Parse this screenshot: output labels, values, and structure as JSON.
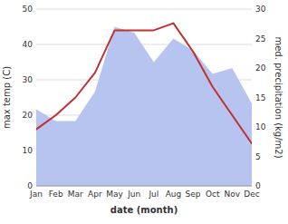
{
  "chart_data": {
    "type": "line",
    "categories": [
      "Jan",
      "Feb",
      "Mar",
      "Apr",
      "May",
      "Jun",
      "Jul",
      "Aug",
      "Sep",
      "Oct",
      "Nov",
      "Dec"
    ],
    "xlabel": "date (month)",
    "ylabel": "max temp (C)",
    "y2label": "med. precipitation (kg/m2)",
    "series": [
      {
        "type": "area",
        "axis": "y2",
        "color": "#b8c4f0",
        "values": [
          13,
          11,
          11,
          16,
          27,
          26,
          21,
          25,
          23,
          19,
          20,
          14
        ]
      },
      {
        "type": "line",
        "color": "#c03030",
        "values": [
          16,
          20,
          25,
          32,
          44,
          44,
          44,
          46,
          38,
          28,
          20,
          12
        ]
      }
    ],
    "ylim": [
      0,
      50
    ],
    "yticks": [
      0,
      10,
      20,
      30,
      40,
      50
    ],
    "y2lim": [
      0,
      30
    ],
    "y2ticks": [
      0,
      5,
      10,
      15,
      20,
      25,
      30
    ],
    "grid": true
  }
}
